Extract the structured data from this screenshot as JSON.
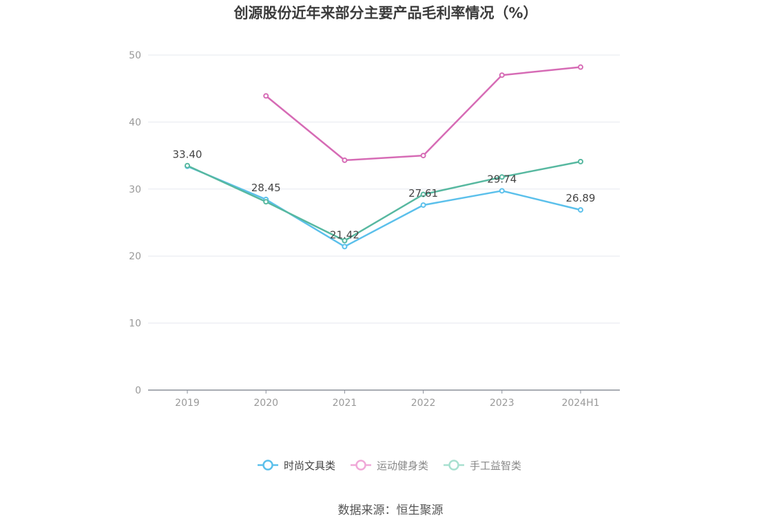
{
  "chart_data": {
    "type": "line",
    "title": "创源股份近年来部分主要产品毛利率情况（%）",
    "categories": [
      "2019",
      "2020",
      "2021",
      "2022",
      "2023",
      "2024H1"
    ],
    "ylim": [
      0,
      50
    ],
    "yticks": [
      "0",
      "10",
      "20",
      "30",
      "40",
      "50"
    ],
    "grid": true,
    "legend_position": "bottom-center",
    "series": [
      {
        "name": "时尚文具类",
        "color": "#5bc0eb",
        "values": [
          33.4,
          28.45,
          21.42,
          27.61,
          29.74,
          26.89
        ],
        "labels": [
          "33.40",
          "28.45",
          "21.42",
          "27.61",
          "29.74",
          "26.89"
        ]
      },
      {
        "name": "运动健身类",
        "color": "#d66bb5",
        "values": [
          null,
          43.9,
          34.3,
          35.0,
          47.0,
          48.2
        ]
      },
      {
        "name": "手工益智类",
        "color": "#57b8a0",
        "values": [
          33.5,
          28.1,
          22.3,
          29.2,
          31.8,
          34.1
        ]
      }
    ],
    "legend_colors": [
      "#5bc0eb",
      "#f0a8d8",
      "#a8e0d0"
    ]
  },
  "source": "数据来源：恒生聚源"
}
